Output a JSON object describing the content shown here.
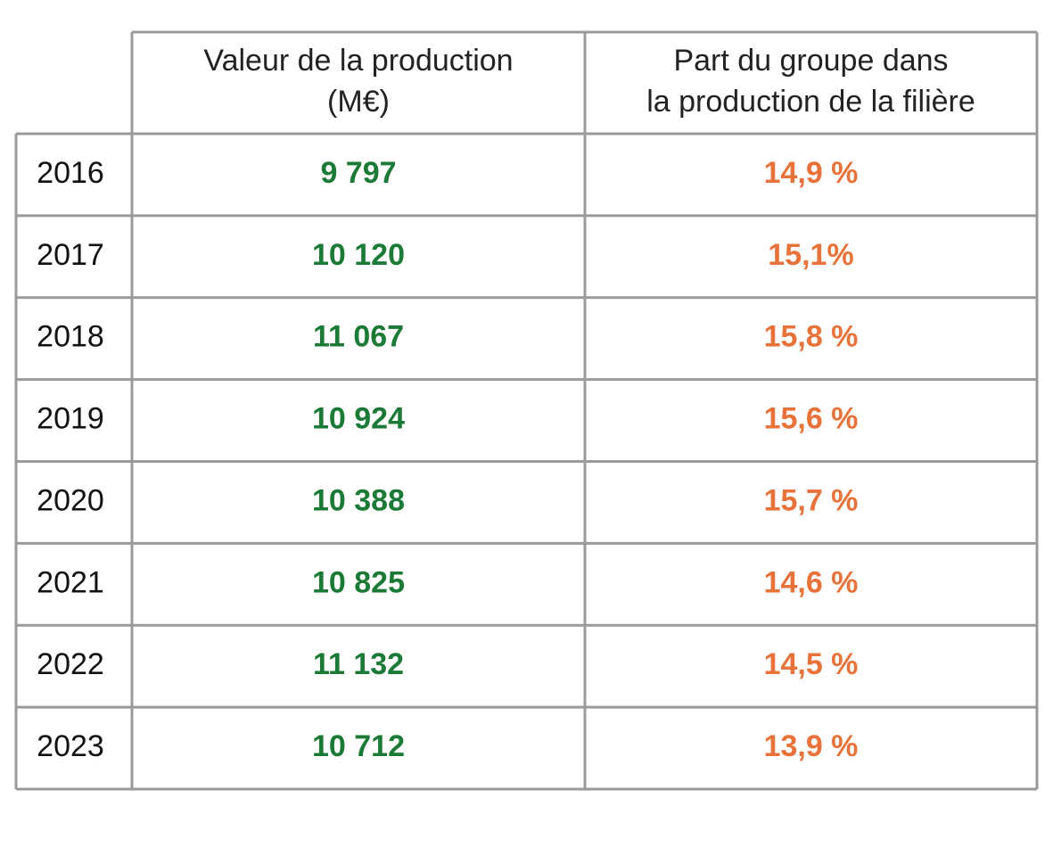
{
  "table": {
    "header": [
      [],
      [
        "Valeur de la production",
        "(M€)"
      ],
      [
        "Part du groupe dans",
        "la production de la filière"
      ]
    ],
    "rows": [
      [
        "2016",
        "9 797",
        "14,9 %"
      ],
      [
        "2017",
        "10 120",
        "15,1%"
      ],
      [
        "2018",
        "11 067",
        "15,8 %"
      ],
      [
        "2019",
        "10 924",
        "15,6 %"
      ],
      [
        "2020",
        "10 388",
        "15,7 %"
      ],
      [
        "2021",
        "10 825",
        "14,6 %"
      ],
      [
        "2022",
        "11 132",
        "14,5 %"
      ],
      [
        "2023",
        "10 712",
        "13,9 %"
      ]
    ]
  }
}
